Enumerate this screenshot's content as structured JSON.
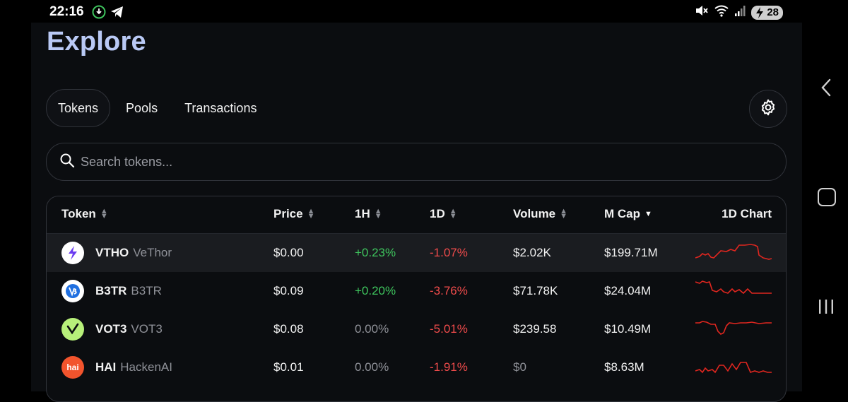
{
  "status_bar": {
    "time": "22:16",
    "left_icons": [
      "vpn-icon",
      "telegram-icon"
    ],
    "right_icons": [
      "mute-icon",
      "wifi-icon",
      "signal-icon"
    ],
    "battery": "28"
  },
  "page": {
    "title": "Explore"
  },
  "tabs": [
    {
      "label": "Tokens",
      "active": true
    },
    {
      "label": "Pools",
      "active": false
    },
    {
      "label": "Transactions",
      "active": false
    }
  ],
  "search": {
    "placeholder": "Search tokens..."
  },
  "table": {
    "headers": {
      "token": "Token",
      "price": "Price",
      "h1": "1H",
      "d1": "1D",
      "volume": "Volume",
      "mcap": "M Cap",
      "chart": "1D Chart"
    },
    "rows": [
      {
        "symbol": "VTHO",
        "name": "VeThor",
        "price": "$0.00",
        "h1": "+0.23%",
        "d1": "-1.07%",
        "volume": "$2.02K",
        "mcap": "$199.71M",
        "logo_icon": "vethor-logo-icon",
        "logo_color": "#ffffff"
      },
      {
        "symbol": "B3TR",
        "name": "B3TR",
        "price": "$0.09",
        "h1": "+0.20%",
        "d1": "-3.76%",
        "volume": "$71.78K",
        "mcap": "$24.04M",
        "logo_icon": "b3tr-logo-icon",
        "logo_color": "#ffffff"
      },
      {
        "symbol": "VOT3",
        "name": "VOT3",
        "price": "$0.08",
        "h1": "0.00%",
        "d1": "-5.01%",
        "volume": "$239.58",
        "mcap": "$10.49M",
        "logo_icon": "vot3-logo-icon",
        "logo_color": "#b7f07a"
      },
      {
        "symbol": "HAI",
        "name": "HackenAI",
        "price": "$0.01",
        "h1": "0.00%",
        "d1": "-1.91%",
        "volume": "$0",
        "mcap": "$8.63M",
        "logo_icon": "hackenai-logo-icon",
        "logo_color": "#f2542d",
        "logo_text": "hai"
      }
    ]
  },
  "colors": {
    "title": "#b9c9f5",
    "positive": "#3ec45d",
    "negative": "#ef4b4b",
    "sparkline": "#e0261f"
  }
}
